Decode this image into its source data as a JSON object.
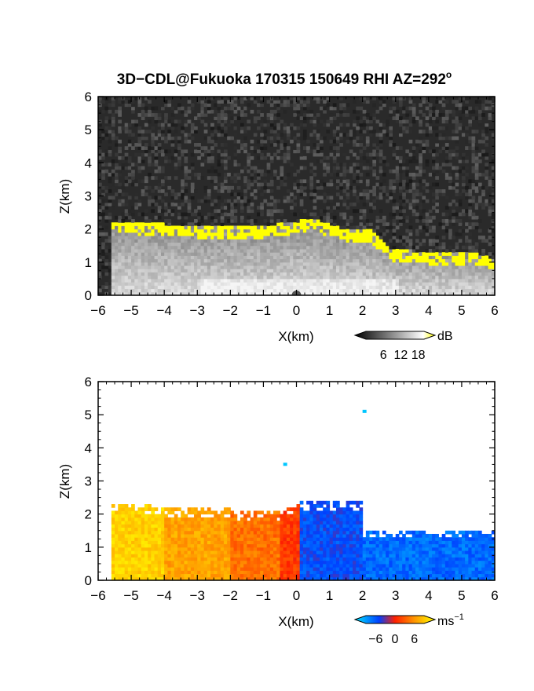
{
  "chart_data": [
    {
      "type": "heatmap",
      "title": "3D−CDL@Fukuoka 170315 150649 RHI AZ=292",
      "title_sup": "o",
      "xlabel": "X(km)",
      "ylabel": "Z(km)",
      "xlim": [
        -6,
        6
      ],
      "ylim": [
        0,
        6
      ],
      "xticks": [
        "−6",
        "−5",
        "−4",
        "−3",
        "−2",
        "−1",
        "0",
        "1",
        "2",
        "3",
        "4",
        "5",
        "6"
      ],
      "yticks": [
        "0",
        "1",
        "2",
        "3",
        "4",
        "5",
        "6"
      ],
      "grid": false,
      "field": "signal strength",
      "colorbar": {
        "label": "dB",
        "ticks": [
          "6",
          "12",
          "18"
        ],
        "tick_values": [
          6,
          12,
          18
        ],
        "range": [
          0,
          20
        ],
        "colors": [
          "#000000",
          "#ffffff",
          "#ffff00"
        ]
      },
      "echo_top_km": [
        {
          "x": -5.6,
          "z": 2.25
        },
        {
          "x": -4.0,
          "z": 2.15
        },
        {
          "x": -2.0,
          "z": 2.05
        },
        {
          "x": -1.0,
          "z": 2.1
        },
        {
          "x": 0.5,
          "z": 2.3
        },
        {
          "x": 1.5,
          "z": 2.0
        },
        {
          "x": 2.2,
          "z": 2.0
        },
        {
          "x": 2.9,
          "z": 1.4
        },
        {
          "x": 4.0,
          "z": 1.3
        },
        {
          "x": 5.5,
          "z": 1.25
        },
        {
          "x": 6.0,
          "z": 1.1
        }
      ]
    },
    {
      "type": "heatmap",
      "xlabel": "X(km)",
      "ylabel": "Z(km)",
      "xlim": [
        -6,
        6
      ],
      "ylim": [
        0,
        6
      ],
      "xticks": [
        "−6",
        "−5",
        "−4",
        "−3",
        "−2",
        "−1",
        "0",
        "1",
        "2",
        "3",
        "4",
        "5",
        "6"
      ],
      "yticks": [
        "0",
        "1",
        "2",
        "3",
        "4",
        "5",
        "6"
      ],
      "grid": false,
      "field": "radial velocity",
      "colorbar": {
        "label": "ms",
        "label_sup": "−1",
        "ticks": [
          "−6",
          "0",
          "6"
        ],
        "tick_values": [
          -6,
          0,
          6
        ],
        "range": [
          -9,
          9
        ],
        "colors": [
          "#00e5ff",
          "#0040ff",
          "#ff2000",
          "#ff9900",
          "#ffff00"
        ]
      },
      "velocity_regions": [
        {
          "x_range": [
            -5.6,
            -4.0
          ],
          "z_range": [
            0,
            2.3
          ],
          "velocity_ms": 7
        },
        {
          "x_range": [
            -4.0,
            -2.0
          ],
          "z_range": [
            0,
            2.2
          ],
          "velocity_ms": 5
        },
        {
          "x_range": [
            -2.0,
            -0.5
          ],
          "z_range": [
            0,
            2.1
          ],
          "velocity_ms": 3
        },
        {
          "x_range": [
            -0.5,
            0.1
          ],
          "z_range": [
            0,
            2.3
          ],
          "velocity_ms": 1
        },
        {
          "x_range": [
            0.1,
            2.0
          ],
          "z_range": [
            0,
            2.4
          ],
          "velocity_ms": -4
        },
        {
          "x_range": [
            2.0,
            6.0
          ],
          "z_range": [
            0,
            1.5
          ],
          "velocity_ms": -5
        }
      ],
      "isolated_points": [
        {
          "x": -0.4,
          "z": 3.5,
          "velocity_ms": -8
        },
        {
          "x": 2.0,
          "z": 5.1,
          "velocity_ms": -8
        }
      ]
    }
  ]
}
